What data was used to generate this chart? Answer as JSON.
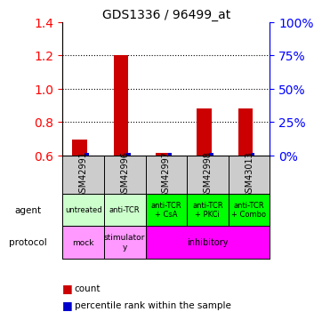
{
  "title": "GDS1336 / 96499_at",
  "samples": [
    "GSM42991",
    "GSM42996",
    "GSM42997",
    "GSM42998",
    "GSM43013"
  ],
  "count_values": [
    0.695,
    1.2,
    0.615,
    0.885,
    0.885
  ],
  "percentile_values": [
    0.615,
    0.615,
    0.615,
    0.615,
    0.615
  ],
  "ylim_left": [
    0.6,
    1.4
  ],
  "yticks_left": [
    0.6,
    0.8,
    1.0,
    1.2,
    1.4
  ],
  "yticks_right": [
    0,
    25,
    50,
    75,
    100
  ],
  "bar_color": "#cc0000",
  "pct_color": "#0000cc",
  "agent_labels": [
    "untreated",
    "anti-TCR",
    "anti-TCR\n+ CsA",
    "anti-TCR\n+ PKCi",
    "anti-TCR\n+ Combo"
  ],
  "protocol_labels": [
    "mock",
    "stimulator\ny",
    "inhibitory"
  ],
  "agent_bg_colors": [
    "#ccffcc",
    "#ccffcc",
    "#00ff00",
    "#00ff00",
    "#00ff00"
  ],
  "protocol_bg_cols": [
    "#ff99ff",
    "#ff99ff",
    "#ff99ff"
  ],
  "sample_bg_color": "#cccccc",
  "grid_color": "#000000",
  "row_label_agent": "agent",
  "row_label_protocol": "protocol"
}
